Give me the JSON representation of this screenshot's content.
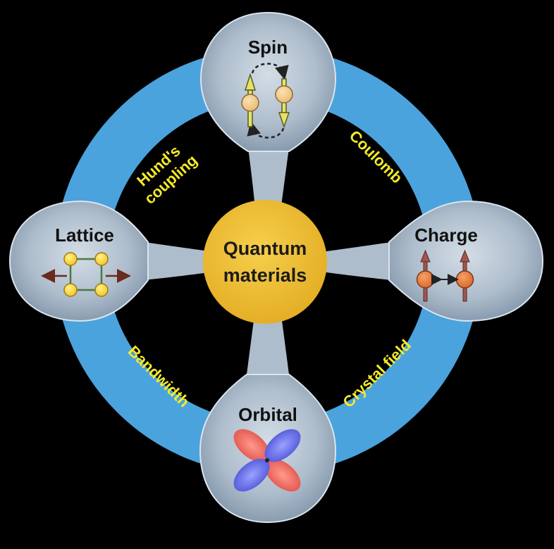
{
  "center": {
    "line1": "Quantum",
    "line2": "materials"
  },
  "nodes": {
    "spin": "Spin",
    "lattice": "Lattice",
    "charge": "Charge",
    "orbital": "Orbital"
  },
  "couplings": {
    "hunds_line1": "Hund's",
    "hunds_line2": "coupling",
    "coulomb": "Coulomb",
    "bandwidth": "Bandwidth",
    "crystal_field": "Crystal field"
  },
  "colors": {
    "background": "#000000",
    "ring": "#4aa3dd",
    "center": "#f0c13c",
    "ring_text": "#f5ea2a",
    "node_fill": "#b9c7d4"
  }
}
